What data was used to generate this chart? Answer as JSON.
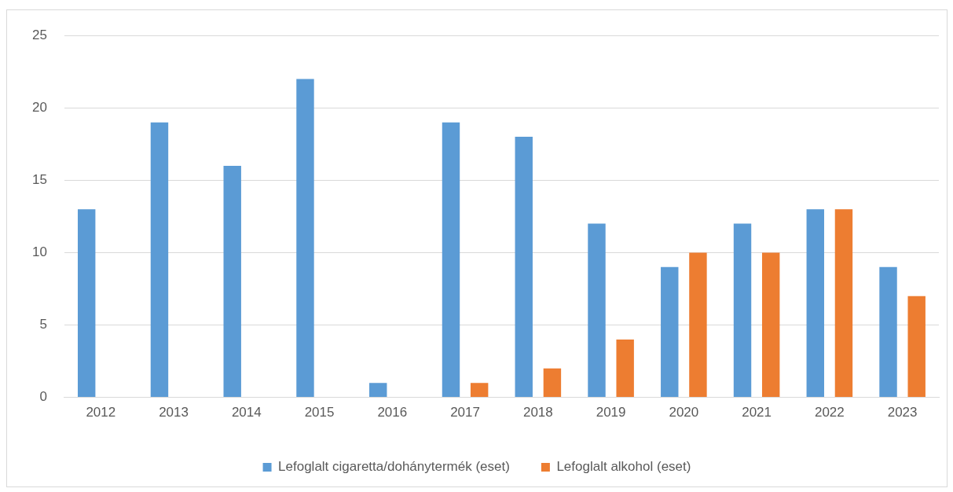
{
  "chart_data": {
    "type": "bar",
    "categories": [
      "2012",
      "2013",
      "2014",
      "2015",
      "2016",
      "2017",
      "2018",
      "2019",
      "2020",
      "2021",
      "2022",
      "2023"
    ],
    "series": [
      {
        "name": "Lefoglalt cigaretta/dohánytermék (eset)",
        "color": "#5b9bd5",
        "values": [
          13,
          19,
          16,
          22,
          1,
          19,
          18,
          12,
          9,
          12,
          13,
          9
        ]
      },
      {
        "name": "Lefoglalt alkohol (eset)",
        "color": "#ed7d31",
        "values": [
          null,
          null,
          null,
          null,
          null,
          1,
          2,
          4,
          10,
          10,
          13,
          7
        ]
      }
    ],
    "ylim": [
      0,
      25
    ],
    "yticks": [
      0,
      5,
      10,
      15,
      20,
      25
    ],
    "grid": "y",
    "legend": "bottom"
  }
}
